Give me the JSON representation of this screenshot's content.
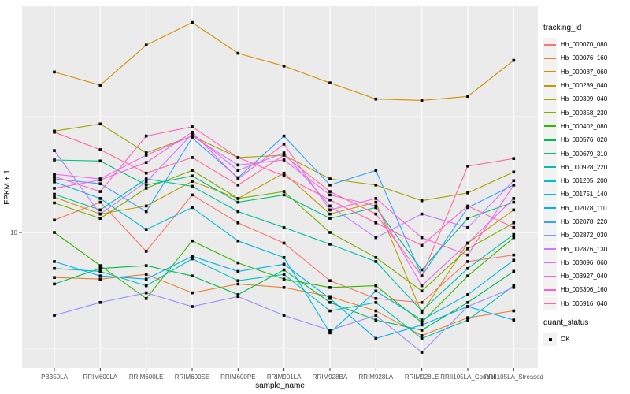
{
  "figure": {
    "y_axis": {
      "title": "FPKM + 1",
      "tick_labels": [
        "10"
      ],
      "tick_values": [
        10
      ]
    },
    "x_axis": {
      "title": "sample_name"
    },
    "legend": {
      "tracking_title": "tracking_id",
      "quant_title": "quant_status",
      "quant_items": [
        {
          "label": "OK",
          "shape": "black-square"
        }
      ]
    },
    "style": {
      "panel_bg": "#EBEBEB",
      "grid_color": "#FFFFFF",
      "tick_text_color": "#4D4D4D",
      "point_color": "#000000",
      "legend_key_bg": "#F2F2F2"
    }
  },
  "chart_data": {
    "type": "line",
    "title": "",
    "xlabel": "sample_name",
    "ylabel": "FPKM + 1",
    "y_scale": "log10",
    "ylim": [
      3,
      85
    ],
    "y_major_breaks": [
      10
    ],
    "y_minor_breaks": [
      3.162,
      31.62
    ],
    "grid": true,
    "legend_position": "right",
    "point_shape": "black-square",
    "categories": [
      "PB350LA",
      "RRIM600LA",
      "RRIM600LE",
      "RRIM600SE",
      "RRIM600PE",
      "RRIM901LA",
      "RRIM928BA",
      "RRIM928LA",
      "RRIM928LE",
      "RRII105LA_Control",
      "RRII105LA_Stressed"
    ],
    "series": [
      {
        "name": "Hb_000070_080",
        "color": "#F8766D",
        "values": [
          11.3,
          13.5,
          8.3,
          14.5,
          11.0,
          9.0,
          6.2,
          5.2,
          5.0,
          7.5,
          8.0
        ]
      },
      {
        "name": "Hb_000076_160",
        "color": "#EA8331",
        "values": [
          6.4,
          6.3,
          6.6,
          5.5,
          6.0,
          5.8,
          5.3,
          4.6,
          3.6,
          4.3,
          4.6
        ]
      },
      {
        "name": "Hb_000087_060",
        "color": "#D89000",
        "values": [
          49,
          43,
          64,
          80,
          59,
          52,
          44,
          37.5,
          37,
          38.5,
          55
        ]
      },
      {
        "name": "Hb_000289_040",
        "color": "#C09B00",
        "values": [
          14.2,
          12.0,
          13.0,
          16.6,
          14.0,
          18.0,
          12.0,
          13.5,
          4.5,
          9.0,
          12.5
        ]
      },
      {
        "name": "Hb_000309_040",
        "color": "#A3A500",
        "values": [
          27.3,
          29.3,
          22,
          26,
          21,
          21.5,
          17,
          16,
          13.7,
          14.8,
          18.2
        ]
      },
      {
        "name": "Hb_000358_230",
        "color": "#7CAE00",
        "values": [
          13.4,
          11.5,
          15.5,
          18.5,
          14,
          15,
          10,
          7.8,
          5.6,
          8.5,
          11
        ]
      },
      {
        "name": "Hb_000402_080",
        "color": "#39B600",
        "values": [
          10.0,
          7.2,
          5.2,
          9.2,
          7.4,
          6.3,
          5.8,
          5.9,
          4.1,
          6.5,
          9.5
        ]
      },
      {
        "name": "Hb_000576_020",
        "color": "#00BB4E",
        "values": [
          6.0,
          7.0,
          7.2,
          6.5,
          5.4,
          6.9,
          5.0,
          4.2,
          3.8,
          5.0,
          6.8
        ]
      },
      {
        "name": "Hb_000679_310",
        "color": "#00BF7D",
        "values": [
          20.5,
          20.3,
          16,
          17.5,
          13.5,
          14.5,
          11.5,
          12.8,
          6.9,
          11.5,
          13.5
        ]
      },
      {
        "name": "Hb_000928_220",
        "color": "#00C1A3",
        "values": [
          14.6,
          12.5,
          17,
          15.8,
          12.3,
          10.5,
          8.9,
          7.5,
          4.6,
          7.0,
          9.8
        ]
      },
      {
        "name": "Hb_001205_200",
        "color": "#00BFC4",
        "values": [
          7.0,
          6.8,
          5.9,
          7.7,
          6.2,
          6.6,
          4.6,
          5.0,
          3.5,
          4.2,
          5.9
        ]
      },
      {
        "name": "Hb_001751_140",
        "color": "#00BAE0",
        "values": [
          16.5,
          14.0,
          10.3,
          12.8,
          9.2,
          7.8,
          3.7,
          5.6,
          4.2,
          5.4,
          7.6
        ]
      },
      {
        "name": "Hb_002078_110",
        "color": "#00B0F6",
        "values": [
          7.5,
          6.5,
          6.3,
          7.9,
          6.8,
          7.3,
          5.2,
          3.5,
          4.0,
          4.8,
          4.2
        ]
      },
      {
        "name": "Hb_002078_220",
        "color": "#35A2FF",
        "values": [
          17.0,
          16.2,
          12.3,
          25.5,
          17.2,
          26.0,
          16.0,
          18.5,
          6.5,
          12.8,
          16.0
        ]
      },
      {
        "name": "Hb_002872_030",
        "color": "#9590FF",
        "values": [
          4.4,
          5.0,
          5.5,
          4.8,
          5.3,
          4.4,
          3.8,
          4.4,
          3.05,
          4.8,
          5.8
        ]
      },
      {
        "name": "Hb_002876_130",
        "color": "#C77CFF",
        "values": [
          22.5,
          12.0,
          16.5,
          26.5,
          18.5,
          22.0,
          13.0,
          9.5,
          12.0,
          10.5,
          16.7
        ]
      },
      {
        "name": "Hb_003096_060",
        "color": "#E76BF3",
        "values": [
          17.8,
          17.0,
          21.5,
          26.0,
          19.5,
          20.5,
          14.5,
          13.0,
          5.9,
          9.0,
          14.0
        ]
      },
      {
        "name": "Hb_003927_040",
        "color": "#FA62DB",
        "values": [
          15.5,
          16.8,
          20.0,
          27.0,
          17.0,
          24.0,
          12.5,
          14.0,
          9.5,
          8.0,
          16.0
        ]
      },
      {
        "name": "Hb_005306_160",
        "color": "#FF62BC",
        "values": [
          17.4,
          15.0,
          26.0,
          28.5,
          21.0,
          17.5,
          13.8,
          11.0,
          8.8,
          13.0,
          10.5
        ]
      },
      {
        "name": "Hb_006916_040",
        "color": "#FF6A98",
        "values": [
          27.0,
          22.7,
          18.0,
          21.0,
          16.0,
          21.5,
          15.0,
          12.0,
          6.5,
          19.3,
          20.8
        ]
      }
    ]
  }
}
